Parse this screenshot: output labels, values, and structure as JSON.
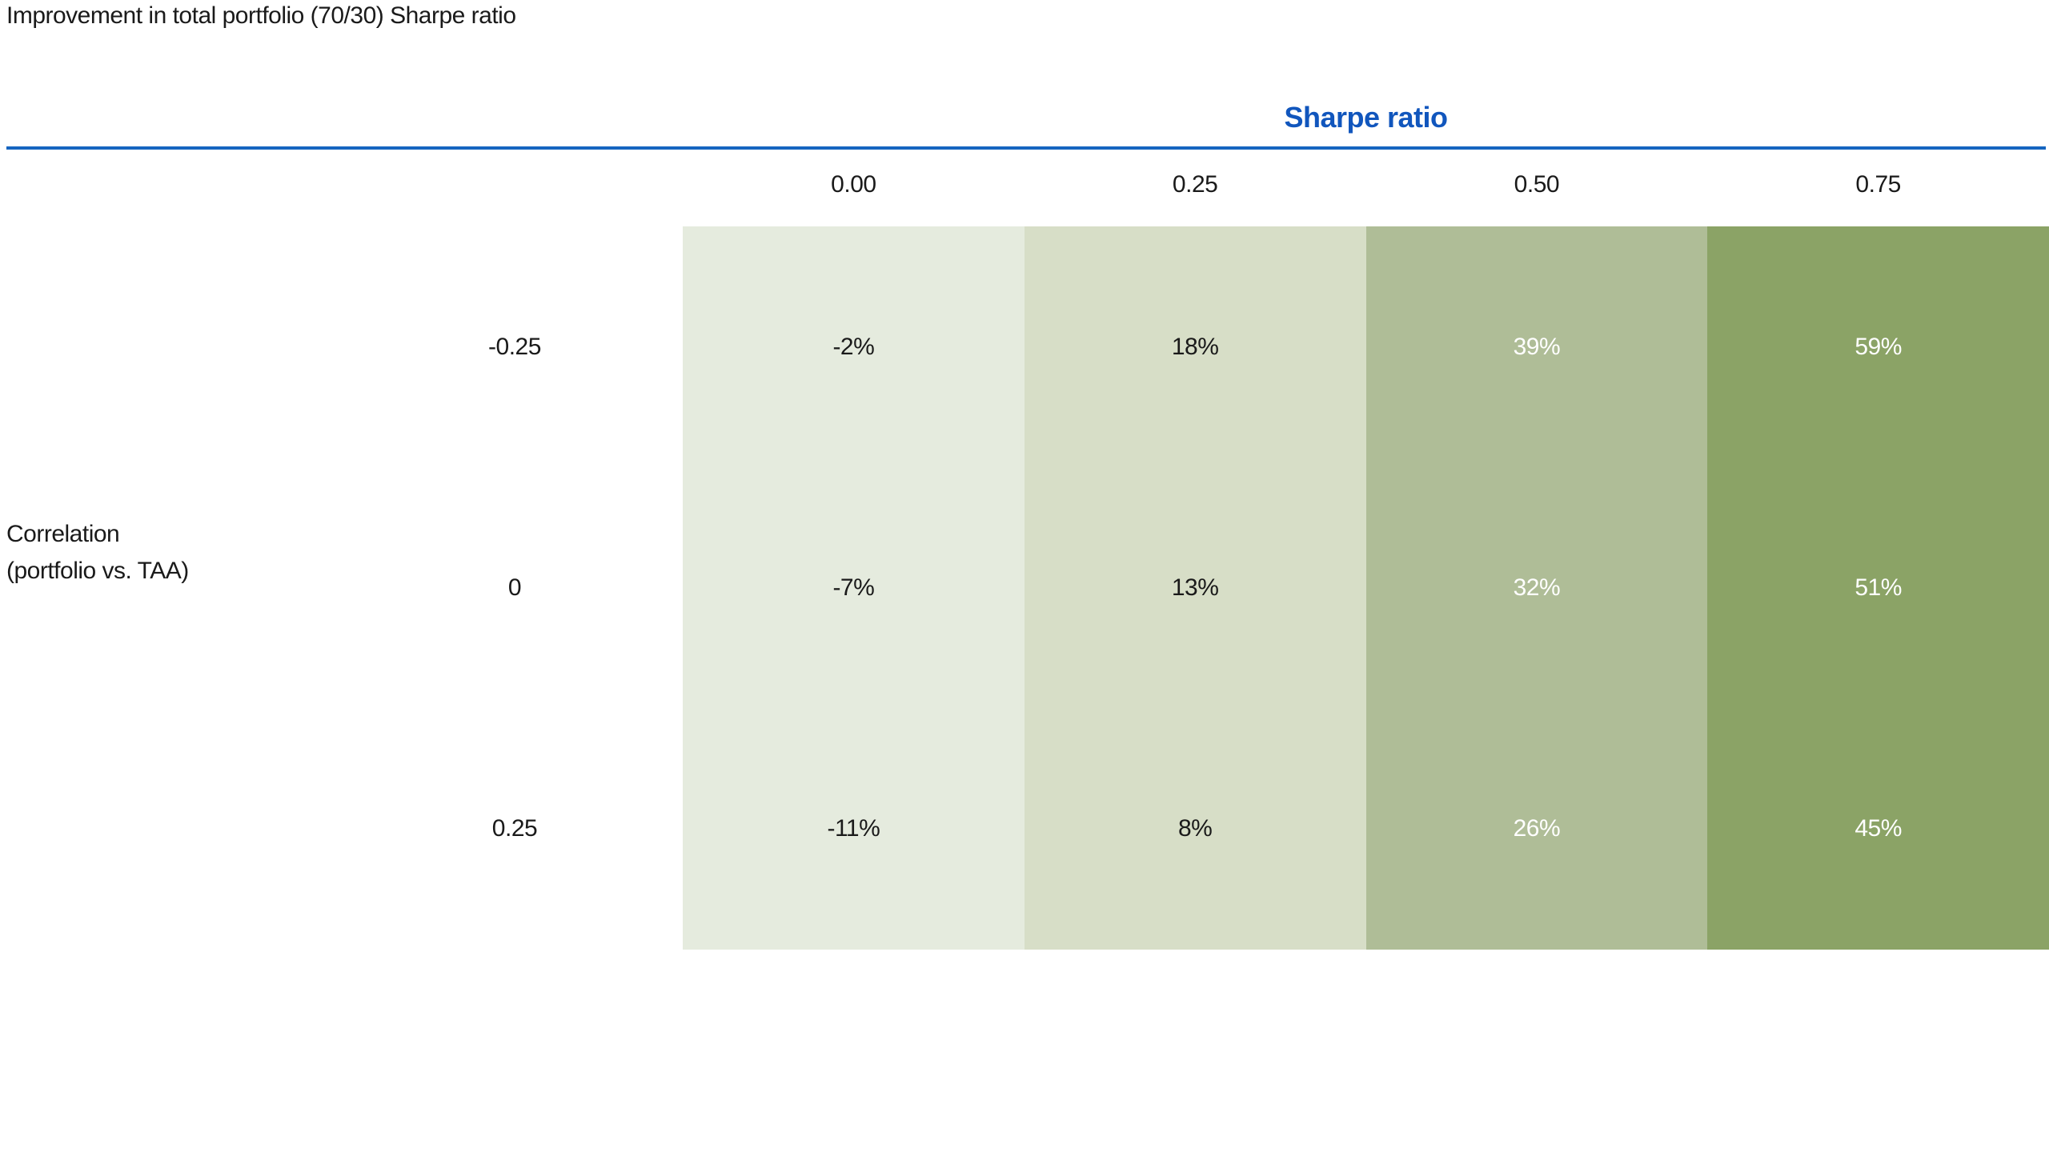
{
  "title": "Improvement in total portfolio (70/30) Sharpe ratio",
  "colors": {
    "x_axis_title_blue": "#1156bd",
    "divider_blue": "#1565c0",
    "dark_text": "#1a1a1a",
    "light_text": "#ffffff"
  },
  "chart_data": {
    "type": "heatmap",
    "title": "Improvement in total portfolio (70/30) Sharpe ratio",
    "xlabel": "Sharpe ratio",
    "ylabel": "Correlation (portfolio vs. TAA)",
    "ylabel_lines": [
      "Correlation",
      "(portfolio vs. TAA)"
    ],
    "x_categories": [
      "0.00",
      "0.25",
      "0.50",
      "0.75"
    ],
    "y_categories": [
      "-0.25",
      "0",
      "0.25"
    ],
    "values_pct": [
      [
        -2,
        18,
        39,
        59
      ],
      [
        -7,
        13,
        32,
        51
      ],
      [
        -11,
        8,
        26,
        45
      ]
    ],
    "cell_labels": [
      [
        "-2%",
        "18%",
        "39%",
        "59%"
      ],
      [
        "-7%",
        "13%",
        "32%",
        "51%"
      ],
      [
        "-11%",
        "8%",
        "26%",
        "45%"
      ]
    ],
    "column_colors": [
      "#e5ebde",
      "#d7dec7",
      "#afbd97",
      "#8ba366"
    ],
    "cell_text_colors": [
      "#1a1a1a",
      "#1a1a1a",
      "#ffffff",
      "#ffffff"
    ],
    "legend_position": "none",
    "grid": "off",
    "color_encoding": "column shade darkens as Sharpe ratio increases"
  }
}
